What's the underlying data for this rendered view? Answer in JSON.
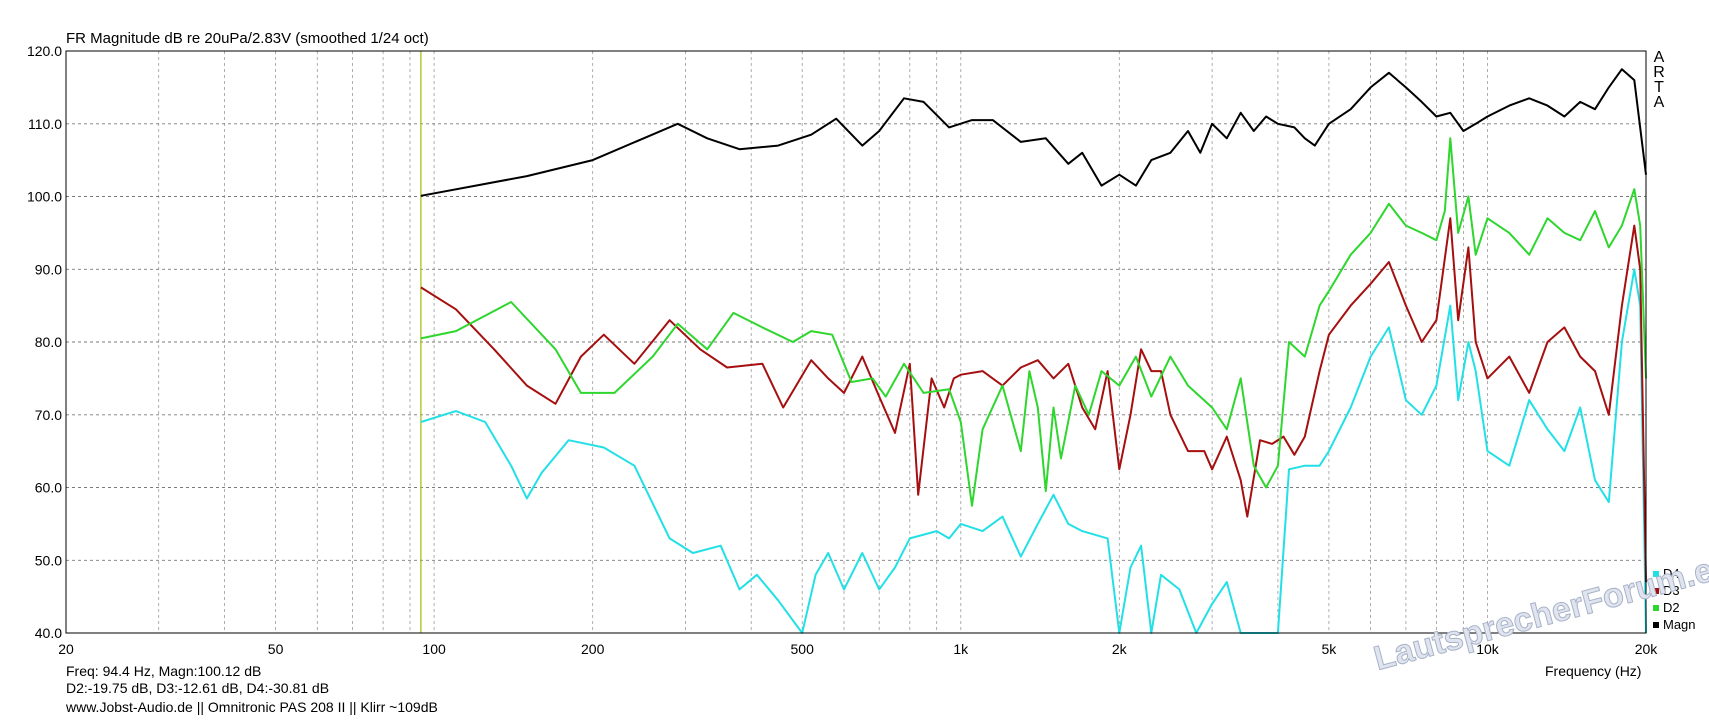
{
  "title": "FR Magnitude dB re 20uPa/2.83V (smoothed 1/24 oct)",
  "brand": "ARTA",
  "xlabel": "Frequency (Hz)",
  "cursor_readout": {
    "line1": "Freq: 94.4 Hz, Magn:100.12 dB",
    "line2": "D2:-19.75 dB, D3:-12.61 dB, D4:-30.81 dB"
  },
  "footer_note": "www.Jobst-Audio.de  ||  Omnitronic PAS 208 II  ||  Klirr ~109dB",
  "watermark": "LautsprecherForum.eu",
  "chart_data": {
    "type": "line",
    "title": "FR Magnitude dB re 20uPa/2.83V (smoothed 1/24 oct)",
    "xlabel": "Frequency (Hz)",
    "ylabel": "",
    "x_scale": "log",
    "xlim": [
      20,
      20000
    ],
    "ylim": [
      40,
      120
    ],
    "grid": true,
    "legend_position": "bottom-right",
    "cursor_frequency_hz": 94.4,
    "y_ticks": [
      "40.0",
      "50.0",
      "60.0",
      "70.0",
      "80.0",
      "90.0",
      "100.0",
      "110.0",
      "120.0"
    ],
    "x_ticks": [
      {
        "value": 20,
        "label": "20"
      },
      {
        "value": 50,
        "label": "50"
      },
      {
        "value": 100,
        "label": "100"
      },
      {
        "value": 200,
        "label": "200"
      },
      {
        "value": 500,
        "label": "500"
      },
      {
        "value": 1000,
        "label": "1k"
      },
      {
        "value": 2000,
        "label": "2k"
      },
      {
        "value": 5000,
        "label": "5k"
      },
      {
        "value": 10000,
        "label": "10k"
      },
      {
        "value": 20000,
        "label": "20k"
      }
    ],
    "legend": [
      {
        "name": "D4",
        "color": "#22e0e6"
      },
      {
        "name": "D3",
        "color": "#a50f0f"
      },
      {
        "name": "D2",
        "color": "#2ed62e"
      },
      {
        "name": "Magn",
        "color": "#000000"
      }
    ],
    "series": [
      {
        "name": "Magn",
        "color": "#000000",
        "points": [
          [
            94.4,
            100.1
          ],
          [
            120,
            101.5
          ],
          [
            150,
            102.8
          ],
          [
            200,
            105
          ],
          [
            250,
            108
          ],
          [
            290,
            110
          ],
          [
            330,
            108
          ],
          [
            380,
            106.5
          ],
          [
            450,
            107
          ],
          [
            520,
            108.5
          ],
          [
            580,
            110.7
          ],
          [
            650,
            107
          ],
          [
            700,
            109
          ],
          [
            780,
            113.5
          ],
          [
            850,
            113
          ],
          [
            950,
            109.5
          ],
          [
            1050,
            110.5
          ],
          [
            1150,
            110.5
          ],
          [
            1300,
            107.5
          ],
          [
            1450,
            108
          ],
          [
            1600,
            104.5
          ],
          [
            1700,
            106
          ],
          [
            1850,
            101.5
          ],
          [
            2000,
            103
          ],
          [
            2150,
            101.5
          ],
          [
            2300,
            105
          ],
          [
            2500,
            106
          ],
          [
            2700,
            109
          ],
          [
            2850,
            106
          ],
          [
            3000,
            110
          ],
          [
            3200,
            108
          ],
          [
            3400,
            111.5
          ],
          [
            3600,
            109
          ],
          [
            3800,
            111
          ],
          [
            4000,
            110
          ],
          [
            4300,
            109.5
          ],
          [
            4500,
            108
          ],
          [
            4700,
            107
          ],
          [
            5000,
            110
          ],
          [
            5500,
            112
          ],
          [
            6000,
            115
          ],
          [
            6500,
            117
          ],
          [
            7000,
            115
          ],
          [
            7500,
            113
          ],
          [
            8000,
            111
          ],
          [
            8500,
            111.5
          ],
          [
            9000,
            109
          ],
          [
            9500,
            110
          ],
          [
            10000,
            111
          ],
          [
            11000,
            112.5
          ],
          [
            12000,
            113.5
          ],
          [
            13000,
            112.5
          ],
          [
            14000,
            111
          ],
          [
            15000,
            113
          ],
          [
            16000,
            112
          ],
          [
            17000,
            115
          ],
          [
            18000,
            117.5
          ],
          [
            19000,
            116
          ],
          [
            20000,
            103
          ]
        ]
      },
      {
        "name": "D2",
        "color": "#2ed62e",
        "points": [
          [
            94.4,
            80.5
          ],
          [
            110,
            81.5
          ],
          [
            140,
            85.5
          ],
          [
            170,
            79
          ],
          [
            190,
            73
          ],
          [
            220,
            73
          ],
          [
            260,
            78
          ],
          [
            290,
            82.5
          ],
          [
            330,
            79
          ],
          [
            370,
            84
          ],
          [
            420,
            82
          ],
          [
            480,
            80
          ],
          [
            520,
            81.5
          ],
          [
            570,
            81
          ],
          [
            620,
            74.5
          ],
          [
            680,
            75
          ],
          [
            720,
            72.5
          ],
          [
            780,
            77
          ],
          [
            850,
            73
          ],
          [
            950,
            73.5
          ],
          [
            1000,
            69
          ],
          [
            1050,
            57.5
          ],
          [
            1100,
            68
          ],
          [
            1200,
            74
          ],
          [
            1300,
            65
          ],
          [
            1350,
            76
          ],
          [
            1400,
            71
          ],
          [
            1450,
            59.5
          ],
          [
            1500,
            71
          ],
          [
            1550,
            64
          ],
          [
            1650,
            74
          ],
          [
            1750,
            70
          ],
          [
            1850,
            76
          ],
          [
            2000,
            74
          ],
          [
            2150,
            78
          ],
          [
            2300,
            72.5
          ],
          [
            2500,
            78
          ],
          [
            2700,
            74
          ],
          [
            3000,
            71
          ],
          [
            3200,
            68
          ],
          [
            3400,
            75
          ],
          [
            3600,
            63
          ],
          [
            3800,
            60
          ],
          [
            4000,
            63
          ],
          [
            4200,
            80
          ],
          [
            4500,
            78
          ],
          [
            4800,
            85
          ],
          [
            5000,
            87
          ],
          [
            5500,
            92
          ],
          [
            6000,
            95
          ],
          [
            6500,
            99
          ],
          [
            7000,
            96
          ],
          [
            7500,
            95
          ],
          [
            8000,
            94
          ],
          [
            8300,
            98
          ],
          [
            8500,
            108
          ],
          [
            8800,
            95
          ],
          [
            9200,
            100
          ],
          [
            9500,
            92
          ],
          [
            10000,
            97
          ],
          [
            11000,
            95
          ],
          [
            12000,
            92
          ],
          [
            13000,
            97
          ],
          [
            14000,
            95
          ],
          [
            15000,
            94
          ],
          [
            16000,
            98
          ],
          [
            17000,
            93
          ],
          [
            18000,
            96
          ],
          [
            19000,
            101
          ],
          [
            19500,
            96
          ],
          [
            20000,
            75
          ]
        ]
      },
      {
        "name": "D3",
        "color": "#a50f0f",
        "points": [
          [
            94.4,
            87.5
          ],
          [
            110,
            84.5
          ],
          [
            130,
            79
          ],
          [
            150,
            74
          ],
          [
            170,
            71.5
          ],
          [
            190,
            78
          ],
          [
            210,
            81
          ],
          [
            240,
            77
          ],
          [
            280,
            83
          ],
          [
            320,
            79
          ],
          [
            360,
            76.5
          ],
          [
            420,
            77
          ],
          [
            460,
            71
          ],
          [
            520,
            77.5
          ],
          [
            560,
            75
          ],
          [
            600,
            73
          ],
          [
            650,
            78
          ],
          [
            700,
            72.5
          ],
          [
            750,
            67.5
          ],
          [
            800,
            77
          ],
          [
            830,
            59
          ],
          [
            880,
            75
          ],
          [
            930,
            71
          ],
          [
            970,
            75
          ],
          [
            1000,
            75.5
          ],
          [
            1100,
            76
          ],
          [
            1200,
            74
          ],
          [
            1300,
            76.5
          ],
          [
            1400,
            77.5
          ],
          [
            1500,
            75
          ],
          [
            1600,
            77
          ],
          [
            1700,
            71
          ],
          [
            1800,
            68
          ],
          [
            1900,
            76
          ],
          [
            2000,
            62.5
          ],
          [
            2100,
            70
          ],
          [
            2200,
            79
          ],
          [
            2300,
            76
          ],
          [
            2400,
            76
          ],
          [
            2500,
            70
          ],
          [
            2700,
            65
          ],
          [
            2900,
            65
          ],
          [
            3000,
            62.5
          ],
          [
            3200,
            67
          ],
          [
            3400,
            61
          ],
          [
            3500,
            56
          ],
          [
            3700,
            66.5
          ],
          [
            3900,
            66
          ],
          [
            4100,
            67
          ],
          [
            4300,
            64.5
          ],
          [
            4500,
            67
          ],
          [
            4800,
            76
          ],
          [
            5000,
            81
          ],
          [
            5500,
            85
          ],
          [
            6000,
            88
          ],
          [
            6500,
            91
          ],
          [
            7000,
            85
          ],
          [
            7500,
            80
          ],
          [
            8000,
            83
          ],
          [
            8500,
            97
          ],
          [
            8800,
            83
          ],
          [
            9200,
            93
          ],
          [
            9500,
            80
          ],
          [
            10000,
            75
          ],
          [
            11000,
            78
          ],
          [
            12000,
            73
          ],
          [
            13000,
            80
          ],
          [
            14000,
            82
          ],
          [
            15000,
            78
          ],
          [
            16000,
            76
          ],
          [
            17000,
            70
          ],
          [
            18000,
            85
          ],
          [
            19000,
            96
          ],
          [
            19500,
            90
          ],
          [
            20000,
            47
          ]
        ]
      },
      {
        "name": "D4",
        "color": "#22e0e6",
        "points": [
          [
            94.4,
            69
          ],
          [
            110,
            70.5
          ],
          [
            125,
            69
          ],
          [
            140,
            63
          ],
          [
            150,
            58.5
          ],
          [
            160,
            62
          ],
          [
            180,
            66.5
          ],
          [
            210,
            65.5
          ],
          [
            240,
            63
          ],
          [
            280,
            53
          ],
          [
            310,
            51
          ],
          [
            350,
            52
          ],
          [
            380,
            46
          ],
          [
            410,
            48
          ],
          [
            450,
            44.5
          ],
          [
            500,
            40
          ],
          [
            530,
            48
          ],
          [
            560,
            51
          ],
          [
            600,
            46
          ],
          [
            650,
            51
          ],
          [
            700,
            46
          ],
          [
            750,
            49
          ],
          [
            800,
            53
          ],
          [
            900,
            54
          ],
          [
            950,
            53
          ],
          [
            1000,
            55
          ],
          [
            1100,
            54
          ],
          [
            1200,
            56
          ],
          [
            1300,
            50.5
          ],
          [
            1400,
            55
          ],
          [
            1500,
            59
          ],
          [
            1600,
            55
          ],
          [
            1700,
            54
          ],
          [
            1900,
            53
          ],
          [
            2000,
            40
          ],
          [
            2100,
            49
          ],
          [
            2200,
            52
          ],
          [
            2300,
            40
          ],
          [
            2400,
            48
          ],
          [
            2600,
            46
          ],
          [
            2800,
            40
          ],
          [
            3000,
            44
          ],
          [
            3200,
            47
          ],
          [
            3400,
            40
          ],
          [
            3800,
            40
          ],
          [
            4000,
            40
          ],
          [
            4200,
            62.5
          ],
          [
            4500,
            63
          ],
          [
            4800,
            63
          ],
          [
            5000,
            65
          ],
          [
            5500,
            71
          ],
          [
            6000,
            78
          ],
          [
            6500,
            82
          ],
          [
            7000,
            72
          ],
          [
            7500,
            70
          ],
          [
            8000,
            74
          ],
          [
            8500,
            85
          ],
          [
            8800,
            72
          ],
          [
            9200,
            80
          ],
          [
            9500,
            76
          ],
          [
            10000,
            65
          ],
          [
            11000,
            63
          ],
          [
            12000,
            72
          ],
          [
            13000,
            68
          ],
          [
            14000,
            65
          ],
          [
            15000,
            71
          ],
          [
            16000,
            61
          ],
          [
            17000,
            58
          ],
          [
            18000,
            80
          ],
          [
            19000,
            90
          ],
          [
            19500,
            85
          ],
          [
            20000,
            40
          ]
        ]
      }
    ]
  }
}
